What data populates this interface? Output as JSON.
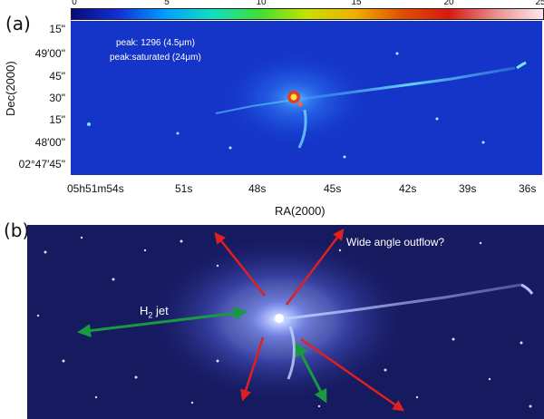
{
  "panel_a": {
    "label": "(a)",
    "colorbar": {
      "ticks": [
        "0",
        "5",
        "10",
        "15",
        "20",
        "25"
      ],
      "colors": [
        "#0a0a78",
        "#1030d8",
        "#00a0ff",
        "#10e0c0",
        "#40e030",
        "#c8e000",
        "#f0b000",
        "#e05000",
        "#d81810",
        "#e89090",
        "#ffe8ee"
      ]
    },
    "annotations": {
      "peak_line1": "peak: 1296 (4.5μm)",
      "peak_line2": "peak:saturated (24μm)"
    },
    "dec_ticks": [
      "15\"",
      "49′00\"",
      "45\"",
      "30\"",
      "15\"",
      "48′00\"",
      "02°47′45\""
    ],
    "ra_ticks": [
      "05h51m54s",
      "51s",
      "48s",
      "45s",
      "42s",
      "39s",
      "36s"
    ],
    "xlabel": "RA(2000)",
    "ylabel": "Dec(2000)"
  },
  "panel_b": {
    "label": "(b)",
    "annotations": {
      "jet_label": "H2 jet",
      "outflow_label": "Wide angle outflow?"
    },
    "arrow_colors": {
      "red": "#e02020",
      "green": "#1a9a40"
    }
  }
}
